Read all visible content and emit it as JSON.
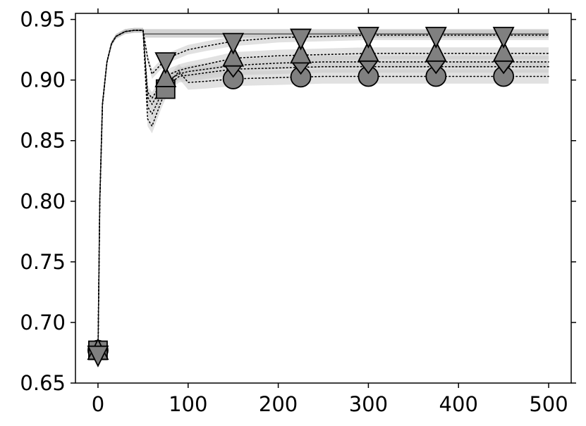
{
  "chart_data": {
    "type": "line",
    "title": "",
    "xlabel": "",
    "ylabel": "",
    "xlim": [
      -25,
      525
    ],
    "ylim": [
      0.65,
      0.955
    ],
    "x_ticks": [
      0,
      100,
      200,
      300,
      400,
      500
    ],
    "x_tick_labels": [
      "0",
      "100",
      "200",
      "300",
      "400",
      "500"
    ],
    "y_ticks": [
      0.65,
      0.7,
      0.75,
      0.8,
      0.85,
      0.9,
      0.95
    ],
    "y_tick_labels": [
      "0.65",
      "0.70",
      "0.75",
      "0.80",
      "0.85",
      "0.90",
      "0.95"
    ],
    "grid": false,
    "legend": "none",
    "colors": {
      "marker_fill": "#808080",
      "band": "#c8c8c8",
      "line": "#000000",
      "solid_line": "#555555"
    },
    "baseline_series": {
      "style": "solid",
      "x": [
        50,
        500
      ],
      "y": [
        0.938,
        0.938
      ],
      "band": [
        0.935,
        0.942
      ]
    },
    "series": [
      {
        "style": "dotted",
        "marker": "triangle-down",
        "x": [
          0,
          2,
          5,
          10,
          15,
          20,
          30,
          40,
          50,
          55,
          60,
          70,
          80,
          90,
          100,
          120,
          150,
          200,
          250,
          300,
          350,
          400,
          450,
          500
        ],
        "y": [
          0.674,
          0.8,
          0.88,
          0.915,
          0.93,
          0.936,
          0.94,
          0.941,
          0.941,
          0.918,
          0.905,
          0.913,
          0.919,
          0.922,
          0.925,
          0.928,
          0.932,
          0.935,
          0.936,
          0.937,
          0.937,
          0.937,
          0.937,
          0.937
        ],
        "markers_x": [
          0,
          75,
          150,
          225,
          300,
          375,
          450
        ],
        "band_halfwidth": 0.004
      },
      {
        "style": "dotted",
        "marker": "triangle-up",
        "x": [
          0,
          2,
          5,
          10,
          15,
          20,
          30,
          40,
          50,
          55,
          60,
          70,
          80,
          90,
          100,
          120,
          150,
          200,
          250,
          300,
          350,
          400,
          450,
          500
        ],
        "y": [
          0.676,
          0.8,
          0.88,
          0.915,
          0.93,
          0.936,
          0.94,
          0.941,
          0.941,
          0.89,
          0.885,
          0.897,
          0.905,
          0.908,
          0.91,
          0.913,
          0.918,
          0.92,
          0.921,
          0.922,
          0.922,
          0.922,
          0.922,
          0.922
        ],
        "markers_x": [
          0,
          75,
          150,
          225,
          300,
          375,
          450
        ],
        "band_halfwidth": 0.005
      },
      {
        "style": "dotted",
        "marker": "square",
        "x": [
          0,
          2,
          5,
          10,
          15,
          20,
          30,
          40,
          50,
          55,
          60,
          70,
          80,
          90,
          100,
          120,
          150,
          200,
          250,
          300,
          350,
          400,
          450,
          500
        ],
        "y": [
          0.677,
          0.8,
          0.88,
          0.915,
          0.93,
          0.936,
          0.94,
          0.941,
          0.941,
          0.878,
          0.872,
          0.888,
          0.897,
          0.903,
          0.904,
          0.906,
          0.909,
          0.91,
          0.911,
          0.911,
          0.911,
          0.911,
          0.911,
          0.911
        ],
        "markers_x": [
          0,
          75
        ],
        "band_halfwidth": 0.005
      },
      {
        "style": "dotted",
        "marker": "circle",
        "x": [
          0,
          2,
          5,
          10,
          15,
          20,
          30,
          40,
          50,
          55,
          60,
          70,
          80,
          90,
          100,
          120,
          150,
          200,
          250,
          300,
          350,
          400,
          450,
          500
        ],
        "y": [
          0.677,
          0.8,
          0.88,
          0.915,
          0.93,
          0.936,
          0.94,
          0.941,
          0.941,
          0.868,
          0.862,
          0.882,
          0.899,
          0.907,
          0.898,
          0.899,
          0.901,
          0.902,
          0.903,
          0.903,
          0.903,
          0.903,
          0.903,
          0.903
        ],
        "markers_x": [
          0,
          150,
          225,
          300,
          375,
          450
        ],
        "band_halfwidth": 0.006
      },
      {
        "style": "dotted",
        "marker": "diamond",
        "x": [
          0,
          2,
          5,
          10,
          15,
          20,
          30,
          40,
          50,
          55,
          60,
          70,
          80,
          90,
          100,
          120,
          150,
          200,
          250,
          300,
          350,
          400,
          450,
          500
        ],
        "y": [
          0.677,
          0.8,
          0.88,
          0.915,
          0.93,
          0.936,
          0.94,
          0.941,
          0.941,
          0.886,
          0.88,
          0.893,
          0.901,
          0.905,
          0.907,
          0.909,
          0.912,
          0.914,
          0.915,
          0.915,
          0.915,
          0.915,
          0.915,
          0.915
        ],
        "markers_x": [
          150,
          225,
          300,
          375,
          450
        ],
        "band_halfwidth": 0.005
      }
    ]
  }
}
